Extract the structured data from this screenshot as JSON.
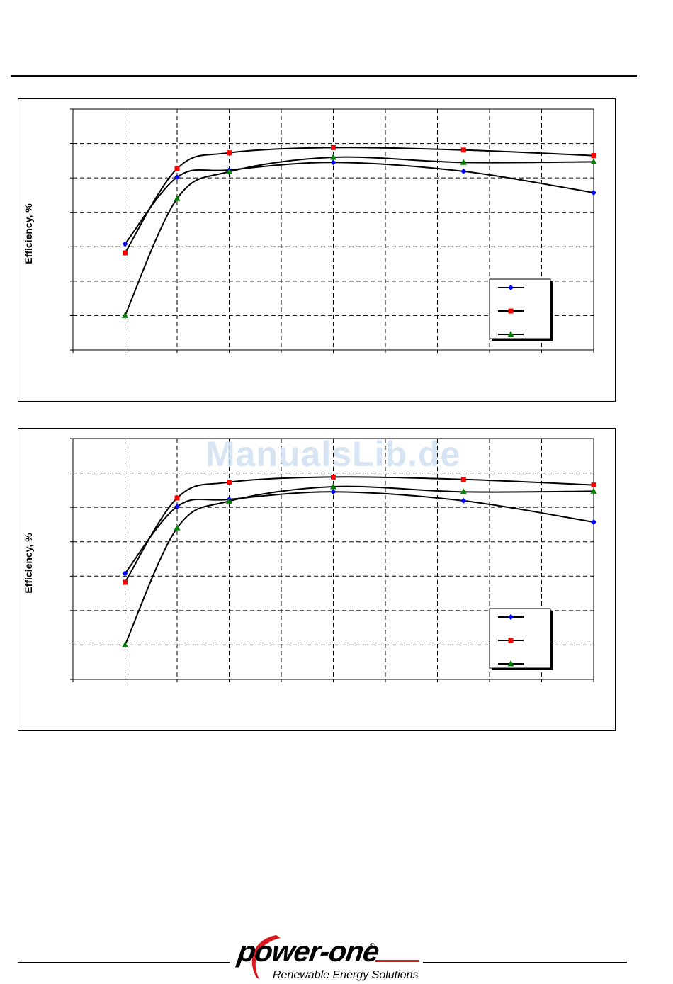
{
  "page": {
    "watermark": "ManualsLib.de",
    "logo_text": "power-one",
    "logo_registered": "®",
    "logo_tagline": "Renewable Energy Solutions"
  },
  "colors": {
    "series_blue": "#0000ff",
    "series_red": "#ff0000",
    "series_green": "#008000",
    "logo_red": "#d71920"
  },
  "chart_data": [
    {
      "type": "line",
      "ylabel": "Efficiency, %",
      "xlim": [
        0,
        10
      ],
      "ylim": [
        0,
        7
      ],
      "grid": true,
      "legend_placement": "bottom-right",
      "series": [
        {
          "x": [
            1,
            2,
            3,
            5,
            7.5,
            10
          ],
          "y": [
            3.08,
            5.02,
            5.23,
            5.45,
            5.19,
            4.57
          ]
        },
        {
          "x": [
            1,
            2,
            3,
            5,
            7.5,
            10
          ],
          "y": [
            2.82,
            5.27,
            5.73,
            5.88,
            5.81,
            5.65
          ]
        },
        {
          "x": [
            1,
            2,
            3,
            5,
            7.5,
            10
          ],
          "y": [
            1.0,
            4.4,
            5.18,
            5.6,
            5.45,
            5.47
          ]
        }
      ]
    },
    {
      "type": "line",
      "ylabel": "Efficiency, %",
      "xlim": [
        0,
        10
      ],
      "ylim": [
        0,
        7
      ],
      "grid": true,
      "legend_placement": "bottom-right",
      "series": [
        {
          "x": [
            1,
            2,
            3,
            5,
            7.5,
            10
          ],
          "y": [
            3.08,
            5.02,
            5.23,
            5.45,
            5.19,
            4.57
          ]
        },
        {
          "x": [
            1,
            2,
            3,
            5,
            7.5,
            10
          ],
          "y": [
            2.82,
            5.27,
            5.73,
            5.88,
            5.81,
            5.65
          ]
        },
        {
          "x": [
            1,
            2,
            3,
            5,
            7.5,
            10
          ],
          "y": [
            1.0,
            4.4,
            5.18,
            5.6,
            5.45,
            5.47
          ]
        }
      ]
    }
  ]
}
